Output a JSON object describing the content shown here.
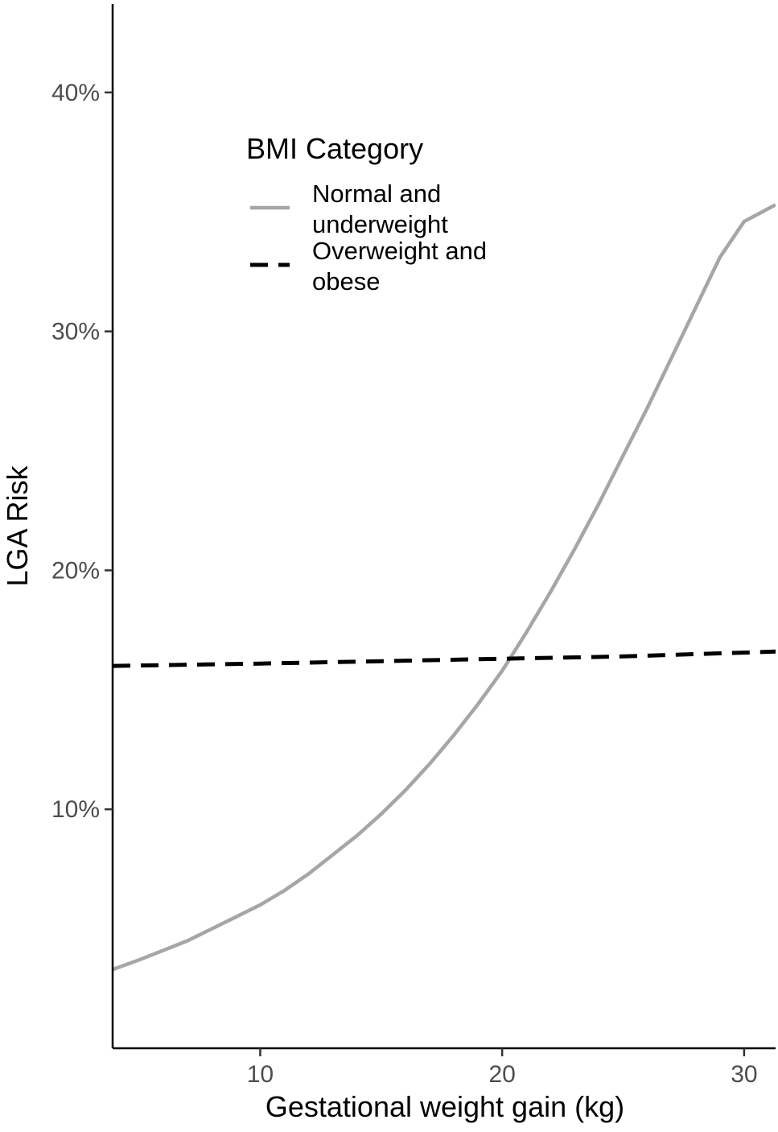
{
  "chart_data": {
    "type": "line",
    "xlabel": "Gestational weight gain (kg)",
    "ylabel": "LGA Risk",
    "xlim": [
      3.9,
      31.3
    ],
    "ylim": [
      0.0,
      0.437
    ],
    "x_ticks": [
      10,
      20,
      30
    ],
    "x_tick_labels": [
      "10",
      "20",
      "30"
    ],
    "y_ticks": [
      0.1,
      0.2,
      0.3,
      0.4
    ],
    "y_tick_labels": [
      "10%",
      "20%",
      "30%",
      "40%"
    ],
    "grid": false,
    "legend": {
      "title": "BMI Category",
      "position": "top-left-inside",
      "entries": [
        {
          "lines": [
            "Normal and",
            "underweight"
          ]
        },
        {
          "lines": [
            "Overweight and",
            "obese"
          ]
        }
      ]
    },
    "series": [
      {
        "name": "Normal and underweight",
        "color": "#a6a6a6",
        "dash": "solid",
        "x": [
          3.9,
          5,
          6,
          7,
          8,
          9,
          10,
          11,
          12,
          13,
          14,
          15,
          16,
          17,
          18,
          19,
          20,
          21,
          22,
          23,
          24,
          25,
          26,
          27,
          28,
          29,
          30,
          31.3
        ],
        "y": [
          0.033,
          0.037,
          0.041,
          0.045,
          0.05,
          0.055,
          0.06,
          0.066,
          0.073,
          0.081,
          0.089,
          0.098,
          0.108,
          0.119,
          0.131,
          0.144,
          0.158,
          0.174,
          0.191,
          0.209,
          0.228,
          0.248,
          0.268,
          0.289,
          0.31,
          0.331,
          0.346,
          0.353
        ]
      },
      {
        "name": "Overweight and obese",
        "color": "#000000",
        "dash": "dashed",
        "x": [
          3.9,
          10,
          15,
          20,
          25,
          31.3
        ],
        "y": [
          0.16,
          0.161,
          0.162,
          0.163,
          0.164,
          0.166
        ]
      }
    ]
  }
}
